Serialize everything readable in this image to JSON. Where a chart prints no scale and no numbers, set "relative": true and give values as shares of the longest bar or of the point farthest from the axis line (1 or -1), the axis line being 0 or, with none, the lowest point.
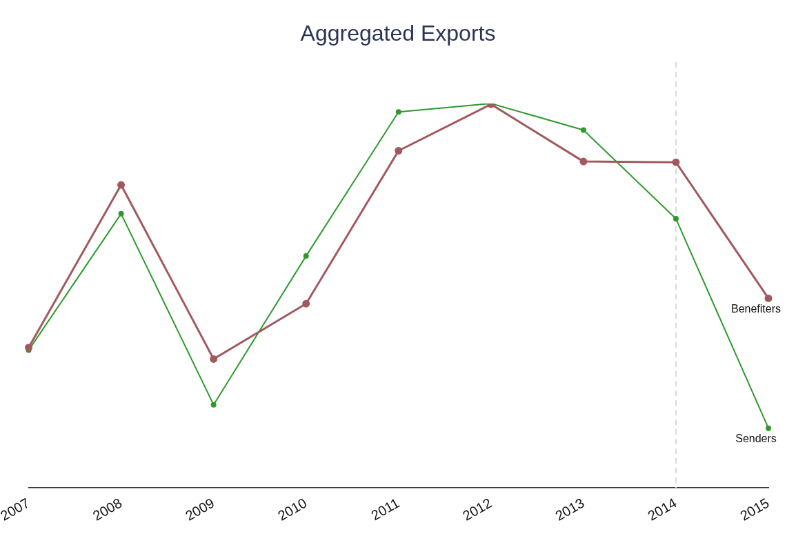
{
  "chart_data": {
    "type": "line",
    "title": "Aggregated Exports",
    "relative": true,
    "categories": [
      "2007",
      "2008",
      "2009",
      "2010",
      "2011",
      "2012",
      "2013",
      "2014",
      "2015"
    ],
    "series": [
      {
        "name": "Benefiters",
        "color": "#a05a5f",
        "values": [
          0.365,
          0.788,
          0.335,
          0.479,
          0.877,
          0.998,
          0.849,
          0.847,
          0.493
        ]
      },
      {
        "name": "Senders",
        "color": "#2e9a2e",
        "values": [
          0.358,
          0.713,
          0.216,
          0.603,
          0.978,
          1.0,
          0.931,
          0.7,
          0.155
        ]
      }
    ],
    "ref_lines": [
      {
        "axis": "x",
        "value": "2014",
        "color": "#d9d9d9",
        "line_style": "dashed"
      }
    ],
    "marker": "circle",
    "grid": false,
    "legend": false
  }
}
